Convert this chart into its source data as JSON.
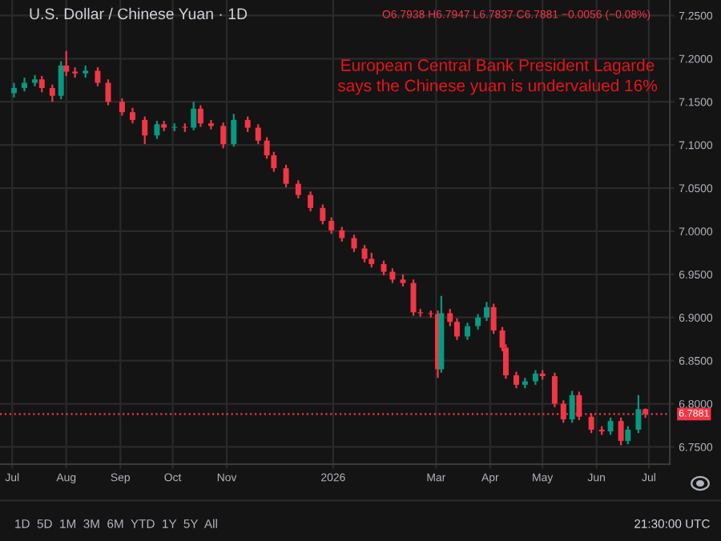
{
  "chart_data": {
    "type": "candlestick",
    "title": "U.S. Dollar / Chinese Yuan · 1D",
    "subtitle": "O6.7938 H6.7947 L6.7837 C6.7881 −0.0056 (−0.08%)",
    "annotations": [
      "European Central Bank President Lagarde\nsays the Chinese yuan is undervalued 16%",
      "1D  5D  1M  3M  6M  YTD  1Y  5Y  All",
      "21:30:00 UTC"
    ],
    "x": [
      "2025-07-02",
      "2025-07-08",
      "2025-07-14",
      "2025-07-18",
      "2025-07-24",
      "2025-07-29",
      "2025-08-01",
      "2025-08-06",
      "2025-08-12",
      "2025-08-19",
      "2025-08-25",
      "2025-09-02",
      "2025-09-08",
      "2025-09-15",
      "2025-09-22",
      "2025-09-26",
      "2025-10-02",
      "2025-10-08",
      "2025-10-13",
      "2025-10-17",
      "2025-10-23",
      "2025-10-30",
      "2025-11-05",
      "2025-11-13",
      "2025-11-19",
      "2025-11-24",
      "2025-11-28",
      "2025-12-05",
      "2025-12-12",
      "2025-12-19",
      "2025-12-26",
      "2025-12-31",
      "2026-01-06",
      "2026-01-13",
      "2026-01-19",
      "2026-01-23",
      "2026-01-30",
      "2026-02-04",
      "2026-02-10",
      "2026-02-16",
      "2026-02-20",
      "2026-02-26",
      "2026-03-02",
      "2026-03-04",
      "2026-03-09",
      "2026-03-13",
      "2026-03-19",
      "2026-03-25",
      "2026-03-30",
      "2026-04-03",
      "2026-04-08",
      "2026-04-10",
      "2026-04-16",
      "2026-04-21",
      "2026-04-27",
      "2026-05-01",
      "2026-05-08",
      "2026-05-13",
      "2026-05-18",
      "2026-05-22",
      "2026-05-29",
      "2026-06-04",
      "2026-06-09",
      "2026-06-15",
      "2026-06-19",
      "2026-06-25",
      "2026-06-29"
    ],
    "ohlc": [
      [
        7.16,
        7.172,
        7.155,
        7.166
      ],
      [
        7.166,
        7.178,
        7.162,
        7.172
      ],
      [
        7.172,
        7.181,
        7.168,
        7.176
      ],
      [
        7.176,
        7.18,
        7.161,
        7.166
      ],
      [
        7.166,
        7.17,
        7.15,
        7.157
      ],
      [
        7.157,
        7.197,
        7.153,
        7.192
      ],
      [
        7.192,
        7.209,
        7.18,
        7.185
      ],
      [
        7.185,
        7.19,
        7.178,
        7.183
      ],
      [
        7.183,
        7.192,
        7.178,
        7.186
      ],
      [
        7.186,
        7.19,
        7.168,
        7.172
      ],
      [
        7.172,
        7.176,
        7.146,
        7.15
      ],
      [
        7.15,
        7.154,
        7.134,
        7.138
      ],
      [
        7.138,
        7.143,
        7.125,
        7.129
      ],
      [
        7.129,
        7.133,
        7.101,
        7.111
      ],
      [
        7.111,
        7.128,
        7.107,
        7.124
      ],
      [
        7.124,
        7.128,
        7.116,
        7.12
      ],
      [
        7.12,
        7.125,
        7.116,
        7.121
      ],
      [
        7.121,
        7.125,
        7.115,
        7.12
      ],
      [
        7.12,
        7.15,
        7.117,
        7.142
      ],
      [
        7.142,
        7.146,
        7.121,
        7.125
      ],
      [
        7.125,
        7.129,
        7.118,
        7.122
      ],
      [
        7.122,
        7.126,
        7.096,
        7.101
      ],
      [
        7.101,
        7.136,
        7.098,
        7.129
      ],
      [
        7.129,
        7.133,
        7.115,
        7.12
      ],
      [
        7.12,
        7.124,
        7.101,
        7.105
      ],
      [
        7.105,
        7.109,
        7.084,
        7.088
      ],
      [
        7.088,
        7.092,
        7.069,
        7.073
      ],
      [
        7.073,
        7.077,
        7.051,
        7.055
      ],
      [
        7.055,
        7.059,
        7.038,
        7.042
      ],
      [
        7.042,
        7.046,
        7.023,
        7.027
      ],
      [
        7.027,
        7.031,
        7.008,
        7.012
      ],
      [
        7.012,
        7.016,
        6.997,
        7.001
      ],
      [
        7.001,
        7.005,
        6.988,
        6.992
      ],
      [
        6.992,
        6.996,
        6.976,
        6.98
      ],
      [
        6.98,
        6.984,
        6.964,
        6.968
      ],
      [
        6.968,
        6.975,
        6.958,
        6.962
      ],
      [
        6.962,
        6.966,
        6.949,
        6.953
      ],
      [
        6.953,
        6.957,
        6.94,
        6.944
      ],
      [
        6.944,
        6.95,
        6.936,
        6.94
      ],
      [
        6.94,
        6.944,
        6.902,
        6.906
      ],
      [
        6.906,
        6.91,
        6.901,
        6.905
      ],
      [
        6.905,
        6.908,
        6.9,
        6.904
      ],
      [
        6.904,
        6.908,
        6.83,
        6.84
      ],
      [
        6.84,
        6.925,
        6.836,
        6.905
      ],
      [
        6.905,
        6.91,
        6.89,
        6.895
      ],
      [
        6.895,
        6.899,
        6.874,
        6.878
      ],
      [
        6.878,
        6.894,
        6.874,
        6.89
      ],
      [
        6.89,
        6.904,
        6.886,
        6.9
      ],
      [
        6.9,
        6.918,
        6.896,
        6.912
      ],
      [
        6.912,
        6.916,
        6.881,
        6.885
      ],
      [
        6.885,
        6.889,
        6.861,
        6.865
      ],
      [
        6.865,
        6.869,
        6.829,
        6.833
      ],
      [
        6.833,
        6.837,
        6.818,
        6.822
      ],
      [
        6.822,
        6.83,
        6.818,
        6.826
      ],
      [
        6.826,
        6.839,
        6.822,
        6.835
      ],
      [
        6.835,
        6.839,
        6.828,
        6.832
      ],
      [
        6.832,
        6.836,
        6.796,
        6.8
      ],
      [
        6.8,
        6.804,
        6.778,
        6.782
      ],
      [
        6.782,
        6.815,
        6.778,
        6.81
      ],
      [
        6.81,
        6.814,
        6.781,
        6.785
      ],
      [
        6.785,
        6.789,
        6.766,
        6.77
      ],
      [
        6.77,
        6.774,
        6.764,
        6.768
      ],
      [
        6.768,
        6.784,
        6.764,
        6.78
      ],
      [
        6.78,
        6.784,
        6.752,
        6.757
      ],
      [
        6.757,
        6.774,
        6.753,
        6.77
      ],
      [
        6.77,
        6.81,
        6.766,
        6.7937
      ],
      [
        6.7938,
        6.7947,
        6.7837,
        6.7881
      ]
    ],
    "colors": [
      "#089981",
      "#089981",
      "#089981",
      "#f23645",
      "#f23645",
      "#089981",
      "#f23645",
      "#f23645",
      "#089981",
      "#f23645",
      "#f23645",
      "#f23645",
      "#f23645",
      "#f23645",
      "#089981",
      "#f23645",
      "#089981",
      "#f23645",
      "#089981",
      "#f23645",
      "#f23645",
      "#f23645",
      "#089981",
      "#f23645",
      "#f23645",
      "#f23645",
      "#f23645",
      "#f23645",
      "#f23645",
      "#f23645",
      "#f23645",
      "#f23645",
      "#f23645",
      "#f23645",
      "#f23645",
      "#f23645",
      "#f23645",
      "#f23645",
      "#f23645",
      "#f23645",
      "#f23645",
      "#f23645",
      "#f23645",
      "#089981",
      "#f23645",
      "#f23645",
      "#089981",
      "#089981",
      "#089981",
      "#f23645",
      "#f23645",
      "#f23645",
      "#f23645",
      "#089981",
      "#089981",
      "#f23645",
      "#f23645",
      "#f23645",
      "#089981",
      "#f23645",
      "#f23645",
      "#f23645",
      "#089981",
      "#f23645",
      "#089981",
      "#089981",
      "#f23645"
    ],
    "xlim": [
      "2025-06-24",
      "2026-07-13"
    ],
    "xticks": [
      {
        "value": "2025-07-01",
        "label": "Jul"
      },
      {
        "value": "2025-08-01",
        "label": "Aug"
      },
      {
        "value": "2025-09-01",
        "label": "Sep"
      },
      {
        "value": "2025-10-01",
        "label": "Oct"
      },
      {
        "value": "2025-11-01",
        "label": "Nov"
      },
      {
        "value": "2026-01-01",
        "label": "2026"
      },
      {
        "value": "2026-03-01",
        "label": "Mar"
      },
      {
        "value": "2026-04-01",
        "label": "Apr"
      },
      {
        "value": "2026-05-01",
        "label": "May"
      },
      {
        "value": "2026-06-01",
        "label": "Jun"
      },
      {
        "value": "2026-07-01",
        "label": "Jul"
      }
    ],
    "ylim": [
      6.73,
      7.268
    ],
    "yticks": [
      {
        "value": 6.75,
        "label": "6.7500"
      },
      {
        "value": 6.8,
        "label": "6.8000"
      },
      {
        "value": 6.85,
        "label": "6.8500"
      },
      {
        "value": 6.9,
        "label": "6.9000"
      },
      {
        "value": 6.95,
        "label": "6.9500"
      },
      {
        "value": 7.0,
        "label": "7.0000"
      },
      {
        "value": 7.05,
        "label": "7.0500"
      },
      {
        "value": 7.1,
        "label": "7.1000"
      },
      {
        "value": 7.15,
        "label": "7.1500"
      },
      {
        "value": 7.2,
        "label": "7.2000"
      },
      {
        "value": 7.25,
        "label": "7.2500"
      }
    ],
    "ref_lines": [
      {
        "axis": "y",
        "value": 6.7881,
        "label": "6.7881",
        "color": "#f23645",
        "line_style": "dotted"
      }
    ],
    "grid": true
  }
}
